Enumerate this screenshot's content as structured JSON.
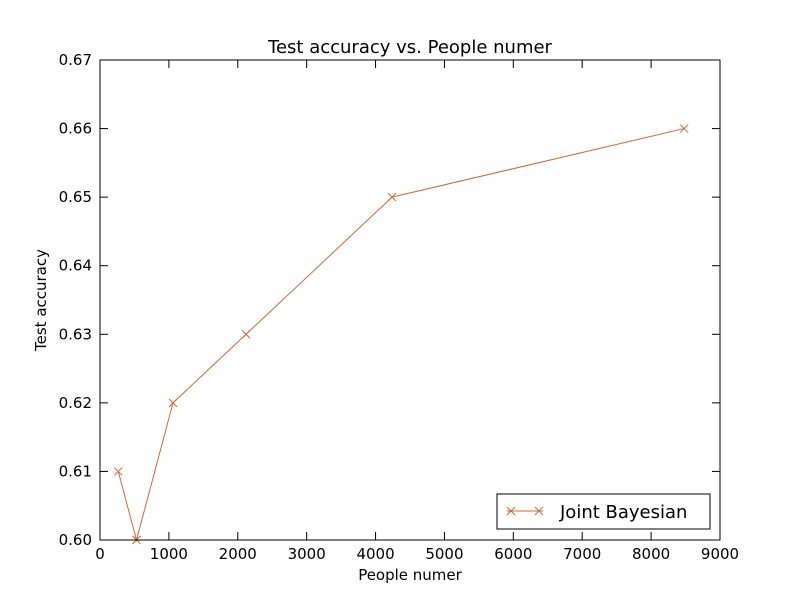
{
  "chart_data": {
    "type": "line",
    "title": "Test accuracy vs. People numer",
    "xlabel": "People numer",
    "ylabel": "Test accuracy",
    "xlim": [
      0,
      9000
    ],
    "ylim": [
      0.6,
      0.67
    ],
    "x_ticks": [
      "0",
      "1000",
      "2000",
      "3000",
      "4000",
      "5000",
      "6000",
      "7000",
      "8000",
      "9000"
    ],
    "y_ticks": [
      "0.60",
      "0.61",
      "0.62",
      "0.63",
      "0.64",
      "0.65",
      "0.66",
      "0.67"
    ],
    "grid": false,
    "legend_position": "lower-right",
    "series": [
      {
        "name": "Joint Bayesian",
        "color": "#c8693a",
        "marker": "x",
        "x": [
          265,
          530,
          1060,
          2120,
          4240,
          8480
        ],
        "y": [
          0.61,
          0.6,
          0.62,
          0.63,
          0.65,
          0.66
        ]
      }
    ]
  }
}
